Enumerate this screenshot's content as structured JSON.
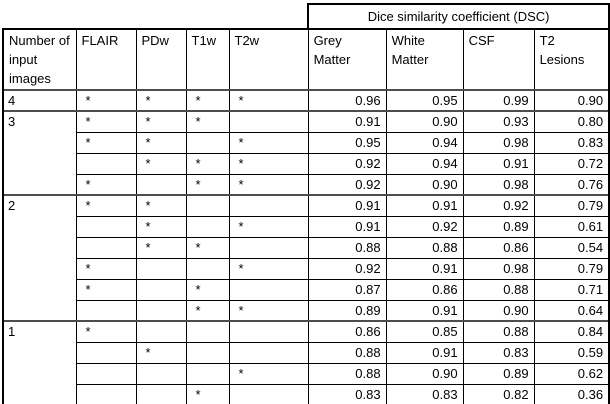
{
  "table": {
    "dsc_title": "Dice similarity coefficient (DSC)",
    "row_label_header": "Number of input images",
    "input_columns": [
      "FLAIR",
      "PDw",
      "T1w",
      "T2w"
    ],
    "metric_columns": [
      "Grey Matter",
      "White Matter",
      "CSF",
      "T2 Lesions"
    ],
    "mark_char": "*",
    "rows": [
      {
        "group": "4",
        "group_span": 1,
        "marks": [
          1,
          1,
          1,
          1
        ],
        "values": [
          "0.96",
          "0.95",
          "0.99",
          "0.90"
        ]
      },
      {
        "group": "3",
        "group_span": 4,
        "marks": [
          1,
          1,
          1,
          0
        ],
        "values": [
          "0.91",
          "0.90",
          "0.93",
          "0.80"
        ]
      },
      {
        "marks": [
          1,
          1,
          0,
          1
        ],
        "values": [
          "0.95",
          "0.94",
          "0.98",
          "0.83"
        ]
      },
      {
        "marks": [
          0,
          1,
          1,
          1
        ],
        "values": [
          "0.92",
          "0.94",
          "0.91",
          "0.72"
        ]
      },
      {
        "marks": [
          1,
          0,
          1,
          1
        ],
        "values": [
          "0.92",
          "0.90",
          "0.98",
          "0.76"
        ]
      },
      {
        "group": "2",
        "group_span": 6,
        "marks": [
          1,
          1,
          0,
          0
        ],
        "values": [
          "0.91",
          "0.91",
          "0.92",
          "0.79"
        ]
      },
      {
        "marks": [
          0,
          1,
          0,
          1
        ],
        "values": [
          "0.91",
          "0.92",
          "0.89",
          "0.61"
        ]
      },
      {
        "marks": [
          0,
          1,
          1,
          0
        ],
        "values": [
          "0.88",
          "0.88",
          "0.86",
          "0.54"
        ]
      },
      {
        "marks": [
          1,
          0,
          0,
          1
        ],
        "values": [
          "0.92",
          "0.91",
          "0.98",
          "0.79"
        ]
      },
      {
        "marks": [
          1,
          0,
          1,
          0
        ],
        "values": [
          "0.87",
          "0.86",
          "0.88",
          "0.71"
        ]
      },
      {
        "marks": [
          0,
          0,
          1,
          1
        ],
        "values": [
          "0.89",
          "0.91",
          "0.90",
          "0.64"
        ]
      },
      {
        "group": "1",
        "group_span": 4,
        "marks": [
          1,
          0,
          0,
          0
        ],
        "values": [
          "0.86",
          "0.85",
          "0.88",
          "0.84"
        ]
      },
      {
        "marks": [
          0,
          1,
          0,
          0
        ],
        "values": [
          "0.88",
          "0.91",
          "0.83",
          "0.59"
        ]
      },
      {
        "marks": [
          0,
          0,
          0,
          1
        ],
        "values": [
          "0.88",
          "0.90",
          "0.89",
          "0.62"
        ]
      },
      {
        "marks": [
          0,
          0,
          1,
          0
        ],
        "values": [
          "0.83",
          "0.83",
          "0.82",
          "0.36"
        ]
      }
    ]
  }
}
